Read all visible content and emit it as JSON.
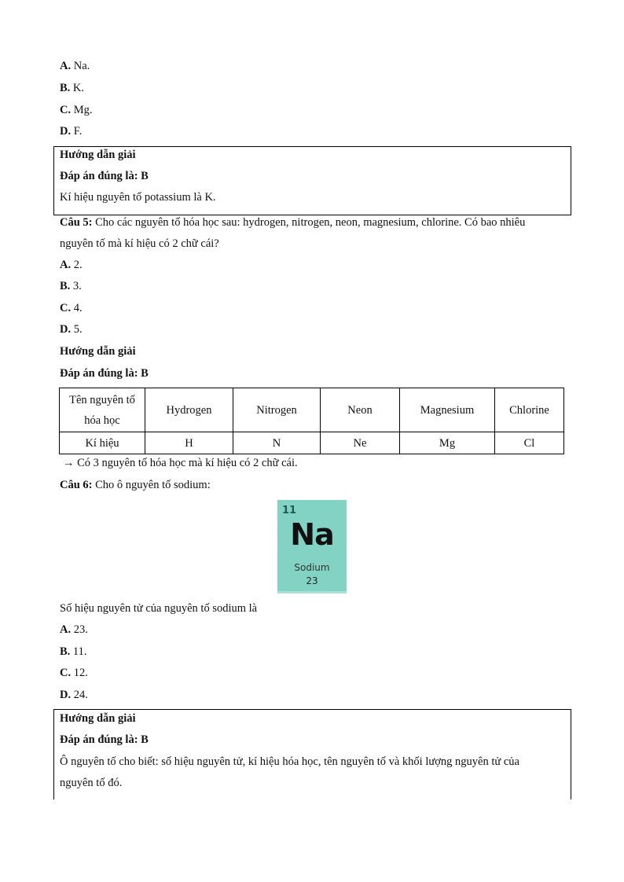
{
  "q4": {
    "options": [
      {
        "letter": "A.",
        "text": " Na."
      },
      {
        "letter": "B.",
        "text": " K."
      },
      {
        "letter": "C.",
        "text": " Mg."
      },
      {
        "letter": "D.",
        "text": " F."
      }
    ],
    "solution": {
      "heading": "Hướng dẫn giải",
      "answer": "Đáp án đúng là: B",
      "explanation": "Kí hiệu nguyên tố potassium là K."
    }
  },
  "q5": {
    "label": "Câu 5:",
    "text_line1": " Cho các nguyên tố hóa học sau: hydrogen, nitrogen, neon, magnesium, chlorine. Có bao nhiêu",
    "text_line2": "nguyên tố mà kí hiệu có 2 chữ cái?",
    "options": [
      {
        "letter": "A.",
        "text": " 2."
      },
      {
        "letter": "B.",
        "text": " 3."
      },
      {
        "letter": "C.",
        "text": " 4."
      },
      {
        "letter": "D.",
        "text": " 5."
      }
    ],
    "solution": {
      "heading": "Hướng dẫn giải",
      "answer": "Đáp án đúng là: B",
      "table": {
        "header": [
          "Tên nguyên tố hóa học",
          "Hydrogen",
          "Nitrogen",
          "Neon",
          "Magnesium",
          "Chlorine"
        ],
        "row": [
          "Kí hiệu",
          "H",
          "N",
          "Ne",
          "Mg",
          "Cl"
        ]
      },
      "conclusion": "→ Có 3 nguyên tố hóa học mà kí hiệu có 2 chữ cái."
    }
  },
  "q6": {
    "label": "Câu 6:",
    "text": " Cho ô nguyên tố sodium:",
    "element": {
      "number": "11",
      "symbol": "Na",
      "name": "Sodium",
      "mass": "23",
      "color": "#83d3c4"
    },
    "question": "Số hiệu nguyên tử của nguyên tố sodium là",
    "options": [
      {
        "letter": "A.",
        "text": " 23."
      },
      {
        "letter": "B.",
        "text": " 11."
      },
      {
        "letter": "C.",
        "text": " 12."
      },
      {
        "letter": "D.",
        "text": " 24."
      }
    ],
    "solution": {
      "heading": "Hướng dẫn giải",
      "answer": "Đáp án đúng là: B",
      "explanation_line1": "Ô nguyên tố cho biết: số hiệu nguyên tử, kí hiệu hóa học, tên nguyên tố và khối lượng nguyên tử của",
      "explanation_line2": "nguyên tố đó."
    }
  }
}
